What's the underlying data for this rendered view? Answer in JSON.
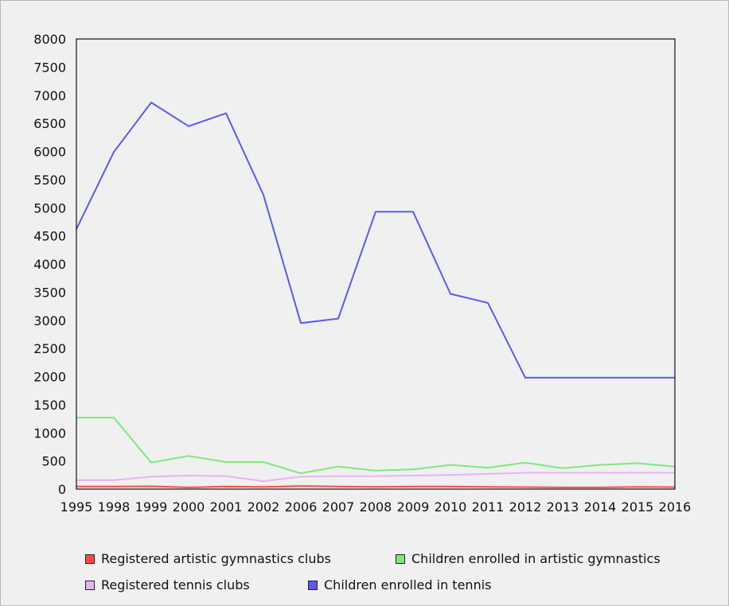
{
  "chart_data": {
    "type": "line",
    "categories": [
      "1995",
      "1998",
      "1999",
      "2000",
      "2001",
      "2002",
      "2006",
      "2007",
      "2008",
      "2009",
      "2010",
      "2011",
      "2012",
      "2013",
      "2014",
      "2015",
      "2016"
    ],
    "ylim": [
      0,
      8000
    ],
    "yticks": [
      0,
      500,
      1000,
      1500,
      2000,
      2500,
      3000,
      3500,
      4000,
      4500,
      5000,
      5500,
      6000,
      6500,
      7000,
      7500,
      8000
    ],
    "grid": false,
    "legend_position": "bottom",
    "series": [
      {
        "name": "Registered artistic gymnastics clubs",
        "color": "#ff4a4a",
        "values": [
          45,
          45,
          50,
          30,
          45,
          40,
          55,
          45,
          40,
          45,
          45,
          40,
          35,
          30,
          30,
          40,
          35
        ]
      },
      {
        "name": "Children enrolled in artistic gymnastics",
        "color": "#7ee87e",
        "values": [
          1270,
          1270,
          470,
          590,
          480,
          480,
          280,
          400,
          330,
          350,
          430,
          380,
          470,
          370,
          430,
          460,
          400
        ]
      },
      {
        "name": "Registered tennis clubs",
        "color": "#e6b4f2",
        "values": [
          160,
          160,
          220,
          240,
          230,
          140,
          220,
          230,
          230,
          240,
          250,
          270,
          290,
          290,
          290,
          290,
          290
        ]
      },
      {
        "name": "Children enrolled in tennis",
        "color": "#5a5af0",
        "values": [
          4620,
          5990,
          6870,
          6450,
          6680,
          5230,
          2950,
          3030,
          4930,
          4930,
          3470,
          3310,
          1980,
          1980,
          1980,
          1980,
          1980
        ]
      }
    ]
  }
}
